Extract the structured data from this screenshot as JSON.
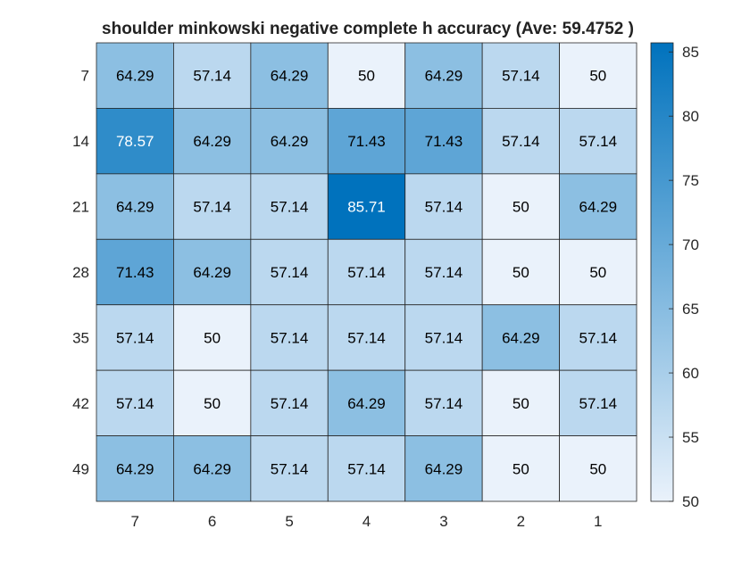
{
  "chart_data": {
    "type": "heatmap",
    "title": "shoulder minkowski negative complete h accuracy (Ave:  59.4752 )",
    "x_categories": [
      "7",
      "6",
      "5",
      "4",
      "3",
      "2",
      "1"
    ],
    "y_categories": [
      "7",
      "14",
      "21",
      "28",
      "35",
      "42",
      "49"
    ],
    "values": [
      [
        64.29,
        57.14,
        64.29,
        50,
        64.29,
        57.14,
        50
      ],
      [
        78.57,
        64.29,
        64.29,
        71.43,
        71.43,
        57.14,
        57.14
      ],
      [
        64.29,
        57.14,
        57.14,
        85.71,
        57.14,
        50,
        64.29
      ],
      [
        71.43,
        64.29,
        57.14,
        57.14,
        57.14,
        50,
        50
      ],
      [
        57.14,
        50,
        57.14,
        57.14,
        57.14,
        64.29,
        57.14
      ],
      [
        57.14,
        50,
        57.14,
        64.29,
        57.14,
        50,
        57.14
      ],
      [
        64.29,
        64.29,
        57.14,
        57.14,
        64.29,
        50,
        50
      ]
    ],
    "cell_labels": [
      [
        "64.29",
        "57.14",
        "64.29",
        "50",
        "64.29",
        "57.14",
        "50"
      ],
      [
        "78.57",
        "64.29",
        "64.29",
        "71.43",
        "71.43",
        "57.14",
        "57.14"
      ],
      [
        "64.29",
        "57.14",
        "57.14",
        "85.71",
        "57.14",
        "50",
        "64.29"
      ],
      [
        "71.43",
        "64.29",
        "57.14",
        "57.14",
        "57.14",
        "50",
        "50"
      ],
      [
        "57.14",
        "50",
        "57.14",
        "57.14",
        "57.14",
        "64.29",
        "57.14"
      ],
      [
        "57.14",
        "50",
        "57.14",
        "64.29",
        "57.14",
        "50",
        "57.14"
      ],
      [
        "64.29",
        "64.29",
        "57.14",
        "57.14",
        "64.29",
        "50",
        "50"
      ]
    ],
    "colorbar": {
      "range": [
        50,
        85.71
      ],
      "ticks": [
        50,
        55,
        60,
        65,
        70,
        75,
        80,
        85
      ],
      "color_low": "#eaf2fb",
      "color_high": "#0072bd"
    },
    "xlabel": "",
    "ylabel": ""
  }
}
